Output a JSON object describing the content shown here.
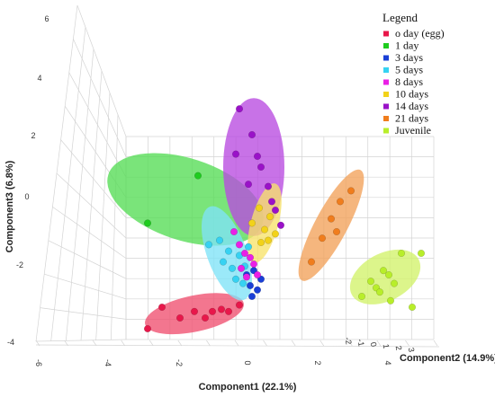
{
  "chart_data": {
    "type": "scatter",
    "title": "",
    "xlabel": "Component1 (22.1%)",
    "ylabel": "Component2 (14.9%)",
    "zlabel": "Component3 (6.8%)",
    "x_ticks": [
      "-6",
      "-4",
      "-2",
      "0",
      "2",
      "4"
    ],
    "y_ticks": [
      "-2",
      "-1",
      "0",
      "1",
      "2",
      "3"
    ],
    "z_ticks": [
      "6",
      "4",
      "2",
      "0",
      "-2",
      "-4"
    ],
    "grid": true,
    "legend": {
      "title": "Legend",
      "placement": "top-right",
      "entries": [
        {
          "name": "o day (egg)",
          "color": "#e8174a"
        },
        {
          "name": "1 day",
          "color": "#1fcc1f"
        },
        {
          "name": "3 days",
          "color": "#1a3fd6"
        },
        {
          "name": "5 days",
          "color": "#36d2f2"
        },
        {
          "name": "8 days",
          "color": "#ea1fe6"
        },
        {
          "name": "10 days",
          "color": "#f2d21a"
        },
        {
          "name": "14 days",
          "color": "#9a12c8"
        },
        {
          "name": "21 days",
          "color": "#f07d1d"
        },
        {
          "name": "Juvenile",
          "color": "#b8ee2a"
        }
      ]
    },
    "series": [
      {
        "name": "o day (egg)",
        "points": [
          [
            -2.6,
            -3.0
          ],
          [
            -2.2,
            -2.5
          ],
          [
            -1.7,
            -2.75
          ],
          [
            -1.3,
            -2.6
          ],
          [
            -1.0,
            -2.75
          ],
          [
            -0.8,
            -2.6
          ],
          [
            -0.55,
            -2.55
          ],
          [
            -0.35,
            -2.6
          ],
          [
            -0.05,
            -2.45
          ]
        ]
      },
      {
        "name": "1 day",
        "points": [
          [
            -2.6,
            -0.55
          ],
          [
            -1.2,
            0.55
          ]
        ]
      },
      {
        "name": "3 days",
        "points": [
          [
            0.15,
            -1.75
          ],
          [
            0.35,
            -1.65
          ],
          [
            0.25,
            -2.0
          ],
          [
            0.45,
            -2.1
          ],
          [
            0.3,
            -2.25
          ],
          [
            0.55,
            -1.85
          ]
        ]
      },
      {
        "name": "5 days",
        "points": [
          [
            -0.9,
            -1.05
          ],
          [
            -0.6,
            -0.95
          ],
          [
            -0.35,
            -1.2
          ],
          [
            -0.5,
            -1.45
          ],
          [
            -0.25,
            -1.6
          ],
          [
            -0.05,
            -1.3
          ],
          [
            0.1,
            -1.55
          ],
          [
            0.2,
            -1.1
          ],
          [
            -0.15,
            -1.85
          ],
          [
            0.05,
            -1.95
          ]
        ]
      },
      {
        "name": "8 days",
        "points": [
          [
            -0.2,
            -0.75
          ],
          [
            -0.05,
            -1.05
          ],
          [
            0.1,
            -1.25
          ],
          [
            0.25,
            -1.35
          ],
          [
            0.0,
            -1.6
          ],
          [
            0.15,
            -1.8
          ],
          [
            0.35,
            -1.5
          ],
          [
            0.45,
            -1.75
          ]
        ]
      },
      {
        "name": "10 days",
        "points": [
          [
            0.3,
            -0.55
          ],
          [
            0.5,
            -0.2
          ],
          [
            0.65,
            -0.7
          ],
          [
            0.55,
            -1.0
          ],
          [
            0.75,
            -0.95
          ],
          [
            0.95,
            -0.8
          ],
          [
            0.8,
            -0.4
          ]
        ]
      },
      {
        "name": "14 days",
        "points": [
          [
            -0.05,
            2.1
          ],
          [
            0.3,
            1.5
          ],
          [
            -0.15,
            1.05
          ],
          [
            0.45,
            1.0
          ],
          [
            0.2,
            0.35
          ],
          [
            0.55,
            0.75
          ],
          [
            0.75,
            0.3
          ],
          [
            0.85,
            -0.05
          ],
          [
            0.95,
            -0.25
          ],
          [
            1.1,
            -0.6
          ]
        ]
      },
      {
        "name": "21 days",
        "points": [
          [
            1.95,
            -1.45
          ],
          [
            2.25,
            -0.9
          ],
          [
            2.5,
            -0.45
          ],
          [
            2.75,
            -0.05
          ],
          [
            3.05,
            0.2
          ],
          [
            2.65,
            -0.75
          ]
        ]
      },
      {
        "name": "Juvenile",
        "points": [
          [
            3.35,
            -2.25
          ],
          [
            3.6,
            -1.9
          ],
          [
            3.75,
            -2.05
          ],
          [
            3.95,
            -1.65
          ],
          [
            4.1,
            -1.75
          ],
          [
            4.25,
            -1.95
          ],
          [
            4.15,
            -2.35
          ],
          [
            3.85,
            -2.15
          ],
          [
            4.45,
            -1.25
          ],
          [
            5.0,
            -1.25
          ],
          [
            4.75,
            -2.5
          ]
        ]
      }
    ],
    "ellipses": [
      {
        "name": "o day (egg)",
        "color": "#f0506f",
        "cx": -1.3,
        "cy": -2.65,
        "rx": 1.4,
        "ry": 0.42,
        "rot": -12
      },
      {
        "name": "1 day",
        "color": "#55dd55",
        "cx": -1.55,
        "cy": 0.0,
        "rx": 2.25,
        "ry": 0.95,
        "rot": 18
      },
      {
        "name": "5 days",
        "color": "#7fe3f7",
        "cx": -0.4,
        "cy": -1.25,
        "rx": 0.55,
        "ry": 1.15,
        "rot": -20
      },
      {
        "name": "14 days",
        "color": "#b84ae0",
        "cx": 0.35,
        "cy": 0.75,
        "rx": 0.85,
        "ry": 1.6,
        "rot": 0
      },
      {
        "name": "10 days",
        "color": "#f7e36a",
        "cx": 0.65,
        "cy": -0.55,
        "rx": 0.38,
        "ry": 0.95,
        "rot": 15
      },
      {
        "name": "21 days",
        "color": "#f2a25a",
        "cx": 2.5,
        "cy": -0.6,
        "rx": 0.45,
        "ry": 1.45,
        "rot": 28
      },
      {
        "name": "Juvenile",
        "color": "#d2f26a",
        "cx": 4.0,
        "cy": -1.8,
        "rx": 1.05,
        "ry": 0.55,
        "rot": -28
      }
    ]
  }
}
